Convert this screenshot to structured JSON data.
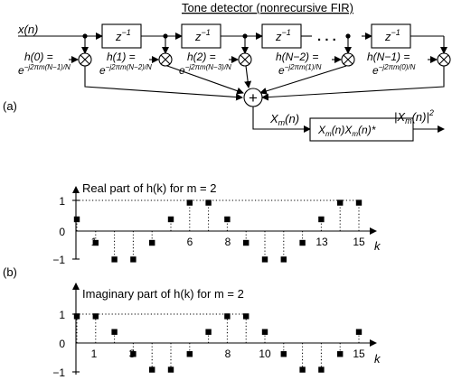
{
  "diagram": {
    "title": "Tone detector (nonrecursive FIR)",
    "input_label": "x(n)",
    "delay_label": "z",
    "delay_exponent": "−1",
    "ellipsis": ". . .",
    "taps": [
      {
        "coef": "h(0) =",
        "exp": "e",
        "power": "−j2πm(N−1)/N"
      },
      {
        "coef": "h(1) =",
        "exp": "e",
        "power": "−j2πm(N−2)/N"
      },
      {
        "coef": "h(2) =",
        "exp": "e",
        "power": "−j2πm(N−3)/N"
      },
      {
        "coef": "h(N−2) =",
        "exp": "e",
        "power": "−j2πm(1)/N"
      },
      {
        "coef": "h(N−1) =",
        "exp": "e",
        "power": "−j2πm(0)/N"
      }
    ],
    "sum_symbol": "+",
    "output_label": "Xm(n)",
    "product_box": "Xm(n)Xm(n)*",
    "magnitude_label": "|Xm(n)|2",
    "panel_a": "(a)",
    "panel_b": "(b)"
  },
  "chart_data": [
    {
      "type": "stem",
      "title": "Real part of h(k) for m = 2",
      "xlabel": "k",
      "ylabel": "",
      "ylim": [
        -1,
        1
      ],
      "yticks": [
        "1",
        "0",
        "−1"
      ],
      "xtick_labels": {
        "1": "1",
        "6": "6",
        "8": "8",
        "13": "13",
        "15": "15"
      },
      "x": [
        0,
        1,
        2,
        3,
        4,
        5,
        6,
        7,
        8,
        9,
        10,
        11,
        12,
        13,
        14,
        15
      ],
      "values": [
        0.383,
        -0.383,
        -0.924,
        -0.924,
        -0.383,
        0.383,
        0.924,
        0.924,
        0.383,
        -0.383,
        -0.924,
        -0.924,
        -0.383,
        0.383,
        0.924,
        0.924
      ]
    },
    {
      "type": "stem",
      "title": "Imaginary part of h(k) for m = 2",
      "xlabel": "k",
      "ylabel": "",
      "ylim": [
        -1,
        1
      ],
      "yticks": [
        "1",
        "0",
        "−1"
      ],
      "xtick_labels": {
        "1": "1",
        "3": "3",
        "8": "8",
        "10": "10",
        "15": "15"
      },
      "x": [
        0,
        1,
        2,
        3,
        4,
        5,
        6,
        7,
        8,
        9,
        10,
        11,
        12,
        13,
        14,
        15
      ],
      "values": [
        0.924,
        0.924,
        0.383,
        -0.383,
        -0.924,
        -0.924,
        -0.383,
        0.383,
        0.924,
        0.924,
        0.383,
        -0.383,
        -0.924,
        -0.924,
        -0.383,
        0.383
      ]
    }
  ]
}
